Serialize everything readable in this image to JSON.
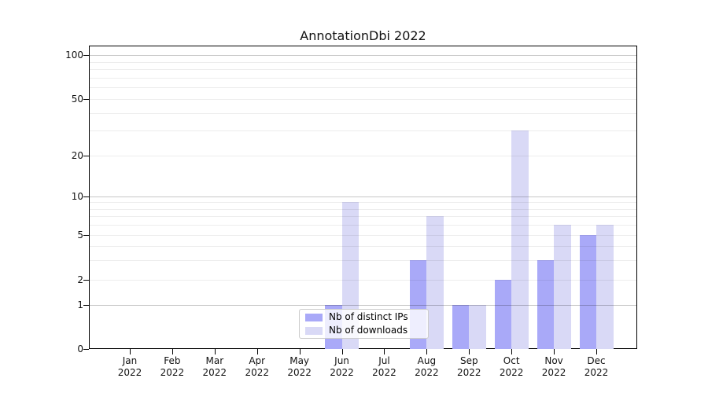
{
  "title": "AnnotationDbi 2022",
  "legend": {
    "items": [
      {
        "label": "Nb of distinct IPs",
        "color": "#a9a9f8"
      },
      {
        "label": "Nb of downloads",
        "color": "#d9d9f6"
      }
    ]
  },
  "axes": {
    "y_tick_labels": [
      "0",
      "1",
      "2",
      "5",
      "10",
      "20",
      "50",
      "100"
    ],
    "x_months": [
      "Jan",
      "Feb",
      "Mar",
      "Apr",
      "May",
      "Jun",
      "Jul",
      "Aug",
      "Sep",
      "Oct",
      "Nov",
      "Dec"
    ],
    "x_year": "2022"
  },
  "chart_data": {
    "type": "bar",
    "title": "AnnotationDbi 2022",
    "categories": [
      "Jan 2022",
      "Feb 2022",
      "Mar 2022",
      "Apr 2022",
      "May 2022",
      "Jun 2022",
      "Jul 2022",
      "Aug 2022",
      "Sep 2022",
      "Oct 2022",
      "Nov 2022",
      "Dec 2022"
    ],
    "series": [
      {
        "name": "Nb of distinct IPs",
        "color": "#a9a9f8",
        "values": [
          0,
          0,
          0,
          0,
          0,
          1,
          0,
          3,
          1,
          2,
          3,
          5
        ]
      },
      {
        "name": "Nb of downloads",
        "color": "#d9d9f6",
        "values": [
          0,
          0,
          0,
          0,
          0,
          9,
          0,
          7,
          1,
          30,
          6,
          6
        ]
      }
    ],
    "xlabel": "",
    "ylabel": "",
    "yscale": "log-above-1-with-zero-baseline",
    "yticks": [
      0,
      1,
      2,
      5,
      10,
      20,
      50,
      100
    ],
    "ylim": [
      0,
      110
    ],
    "grid": "horizontal major and minor, drawn over bars",
    "legend_position": "lower center-left inside plot"
  },
  "colors": {
    "distinct_ips_bar": "#a9a9f8",
    "downloads_bar": "#d9d9f6",
    "grid_major": "#c6c6c6",
    "grid_minor": "#ececec",
    "spine": "#000000"
  }
}
